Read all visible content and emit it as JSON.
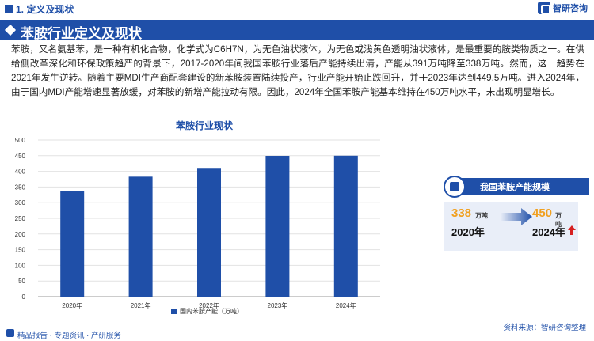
{
  "header": {
    "section_title": "1. 定义及现状",
    "brand_name": "智研咨询"
  },
  "banner": {
    "title": "苯胺行业定义及现状"
  },
  "body": {
    "paragraph": "苯胺，又名氨基苯，是一种有机化合物，化学式为C6H7N，为无色油状液体，为无色或浅黄色透明油状液体，是最重要的胺类物质之一。在供给侧改革深化和环保政策趋严的背景下，2017-2020年间我国苯胺行业落后产能持续出清，产能从391万吨降至338万吨。然而，这一趋势在2021年发生逆转。随着主要MDI生产商配套建设的新苯胺装置陆续投产，行业产能开始止跌回升，并于2023年达到449.5万吨。进入2024年，由于国内MDI产能增速显著放缓，对苯胺的新增产能拉动有限。因此，2024年全国苯胺产能基本维持在450万吨水平，未出现明显增长。"
  },
  "chart_data": {
    "type": "bar",
    "title": "苯胺行业现状",
    "categories": [
      "2020年",
      "2021年",
      "2022年",
      "2023年",
      "2024年"
    ],
    "series": [
      {
        "name": "国内苯胺产能（万吨）",
        "values": [
          338,
          383,
          411,
          449.5,
          450
        ]
      }
    ],
    "yticks": [
      "0",
      "50",
      "100",
      "150",
      "200",
      "250",
      "300",
      "350",
      "400",
      "450",
      "500"
    ],
    "ylim": [
      0,
      500
    ],
    "grid": true,
    "legend": "bottom",
    "bar_color": "#1f4fa8"
  },
  "panel": {
    "title": "我国苯胺产能规模",
    "from_value": "338",
    "from_unit": "万吨",
    "from_year": "2020年",
    "to_value": "450",
    "to_unit": "万吨",
    "to_year": "2024年"
  },
  "footer": {
    "left": "精品报告 · 专题资讯 · 产研服务",
    "right": "资料来源：智研咨询整理"
  }
}
